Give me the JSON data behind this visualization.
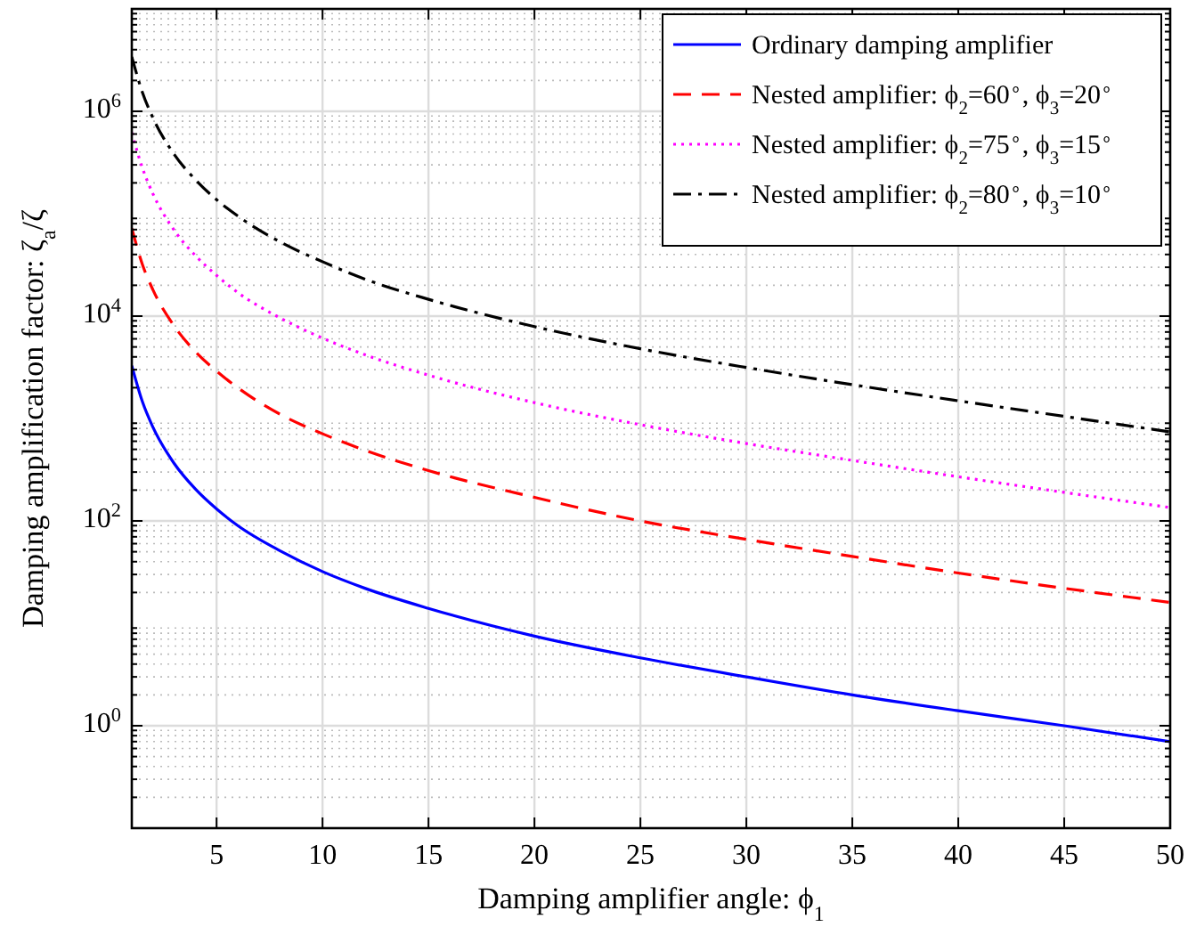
{
  "chart_data": {
    "type": "line",
    "xlabel": "Damping amplifier angle: ϕ$_{1}$",
    "ylabel": "Damping amplification factor: ζ$_{a}$/ζ",
    "log": "y",
    "grid": true,
    "legend": "top right",
    "x": [
      1,
      1.5,
      2,
      3,
      4,
      5,
      6,
      8,
      10,
      12,
      15,
      20,
      25,
      30,
      35,
      40,
      45,
      50
    ],
    "xlim": [
      1,
      50
    ],
    "xticks": [
      5,
      10,
      15,
      20,
      25,
      30,
      35,
      40,
      45,
      50
    ],
    "ylim": [
      0.1,
      10000000
    ],
    "yticks": [
      {
        "value": 1,
        "label": "10$^{0}$"
      },
      {
        "value": 100,
        "label": "10$^{2}$"
      },
      {
        "value": 10000,
        "label": "10$^{4}$"
      },
      {
        "value": 1000000,
        "label": "10$^{6}$"
      }
    ],
    "series": [
      {
        "name": "Ordinary damping amplifier",
        "color": "#0000ff",
        "line_style": "solid",
        "values": [
          3280,
          1460,
          820,
          364,
          205,
          131,
          90,
          51,
          32,
          22,
          14,
          7.5,
          4.6,
          3.0,
          2.0,
          1.4,
          1.0,
          0.7
        ]
      },
      {
        "name": "Nested amplifier: ϕ$_{2}$=60$^{∘}$, ϕ$_{3}$=20$^{∘}$",
        "color": "#ff0000",
        "line_style": "dashed",
        "values": [
          72000,
          32000,
          18000,
          8000,
          4500,
          2900,
          2000,
          1100,
          710,
          490,
          310,
          170,
          100,
          66,
          45,
          31,
          22,
          16
        ]
      },
      {
        "name": "Nested amplifier: ϕ$_{2}$=75$^{∘}$, ϕ$_{3}$=15$^{∘}$",
        "color": "#ff00ff",
        "line_style": "dotted",
        "values": [
          620000,
          280000,
          156000,
          69000,
          39000,
          25000,
          17000,
          9600,
          6100,
          4200,
          2650,
          1430,
          870,
          570,
          390,
          270,
          190,
          135
        ]
      },
      {
        "name": "Nested amplifier: ϕ$_{2}$=80$^{∘}$, ϕ$_{3}$=10$^{∘}$",
        "color": "#000000",
        "line_style": "dashdot",
        "values": [
          3400000,
          1530000,
          860000,
          380000,
          215000,
          137000,
          95000,
          53000,
          34000,
          23000,
          14600,
          7900,
          4800,
          3150,
          2140,
          1490,
          1050,
          740
        ]
      }
    ]
  }
}
